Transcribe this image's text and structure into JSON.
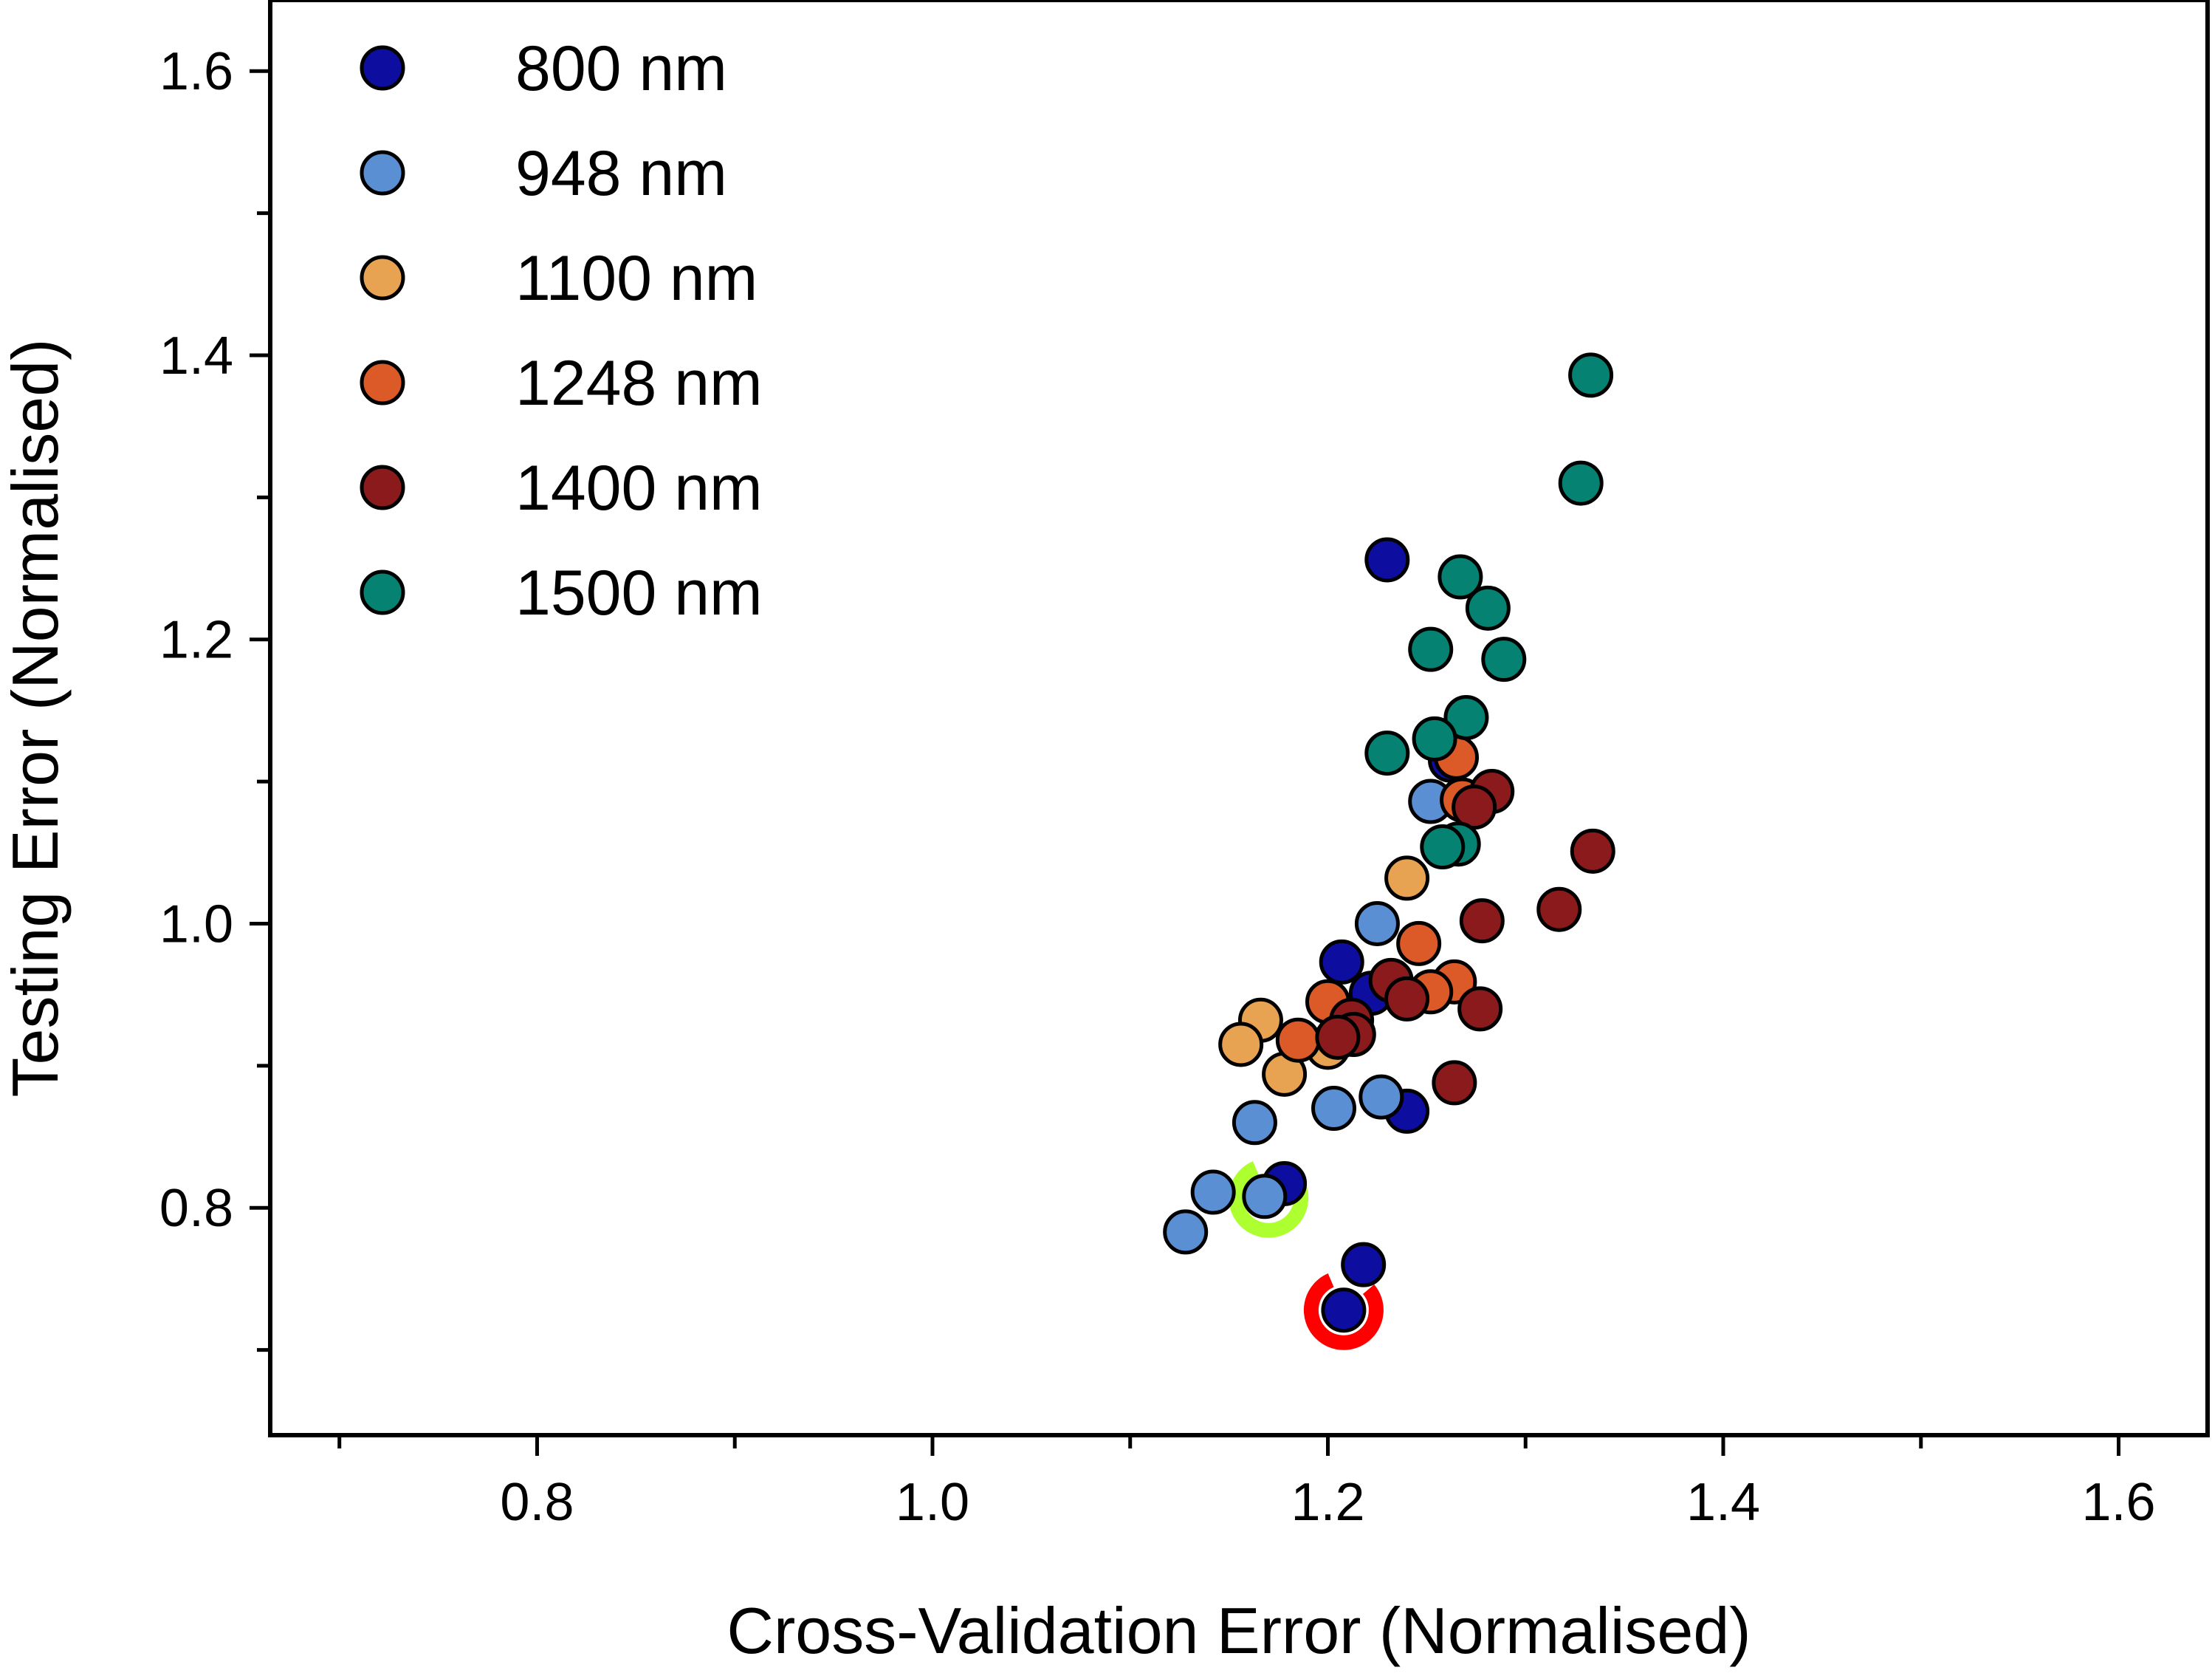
{
  "chart_data": {
    "type": "scatter",
    "xlabel": "Cross-Validation Error (Normalised)",
    "ylabel": "Testing Error (Normalised)",
    "xlim": [
      0.665,
      1.645
    ],
    "ylim": [
      0.64,
      1.65
    ],
    "x_ticks": [
      "0.8",
      "1.0",
      "1.2",
      "1.4",
      "1.6"
    ],
    "y_ticks": [
      "0.8",
      "1.0",
      "1.2",
      "1.4",
      "1.6"
    ],
    "legend_position": "top-left",
    "grid": false,
    "series": [
      {
        "name": "800 nm",
        "color": "#0d0ea0",
        "points": [
          [
            1.23,
            1.256
          ],
          [
            1.207,
            0.973
          ],
          [
            1.222,
            0.951
          ],
          [
            1.24,
            0.868
          ],
          [
            1.218,
            0.76
          ],
          [
            1.208,
            0.728
          ],
          [
            1.178,
            0.817
          ],
          [
            1.262,
            1.115
          ]
        ]
      },
      {
        "name": "948 nm",
        "color": "#5b8fd3",
        "points": [
          [
            1.252,
            1.086
          ],
          [
            1.225,
            1.0
          ],
          [
            1.163,
            0.86
          ],
          [
            1.203,
            0.87
          ],
          [
            1.227,
            0.878
          ],
          [
            1.142,
            0.811
          ],
          [
            1.168,
            0.808
          ],
          [
            1.128,
            0.783
          ]
        ]
      },
      {
        "name": "1100 nm",
        "color": "#e8a352",
        "points": [
          [
            1.24,
            1.032
          ],
          [
            1.166,
            0.932
          ],
          [
            1.156,
            0.915
          ],
          [
            1.178,
            0.894
          ],
          [
            1.2,
            0.913
          ]
        ]
      },
      {
        "name": "1248 nm",
        "color": "#db5a28",
        "points": [
          [
            1.265,
            1.117
          ],
          [
            1.268,
            1.087
          ],
          [
            1.246,
            0.986
          ],
          [
            1.264,
            0.959
          ],
          [
            1.252,
            0.952
          ],
          [
            1.2,
            0.945
          ],
          [
            1.185,
            0.918
          ]
        ]
      },
      {
        "name": "1400 nm",
        "color": "#8b1a1c",
        "points": [
          [
            1.283,
            1.093
          ],
          [
            1.274,
            1.082
          ],
          [
            1.334,
            1.051
          ],
          [
            1.317,
            1.01
          ],
          [
            1.278,
            1.002
          ],
          [
            1.277,
            0.94
          ],
          [
            1.264,
            0.888
          ],
          [
            1.232,
            0.96
          ],
          [
            1.24,
            0.947
          ],
          [
            1.212,
            0.932
          ],
          [
            1.213,
            0.922
          ],
          [
            1.205,
            0.92
          ]
        ]
      },
      {
        "name": "1500 nm",
        "color": "#058272",
        "points": [
          [
            1.333,
            1.386
          ],
          [
            1.328,
            1.31
          ],
          [
            1.267,
            1.244
          ],
          [
            1.281,
            1.222
          ],
          [
            1.252,
            1.193
          ],
          [
            1.289,
            1.186
          ],
          [
            1.27,
            1.145
          ],
          [
            1.254,
            1.13
          ],
          [
            1.23,
            1.12
          ],
          [
            1.266,
            1.056
          ],
          [
            1.258,
            1.054
          ]
        ]
      }
    ],
    "highlights": [
      {
        "x": 1.17,
        "y": 0.807,
        "color": "#adff2f"
      },
      {
        "x": 1.208,
        "y": 0.728,
        "color": "#ff0000"
      }
    ]
  }
}
